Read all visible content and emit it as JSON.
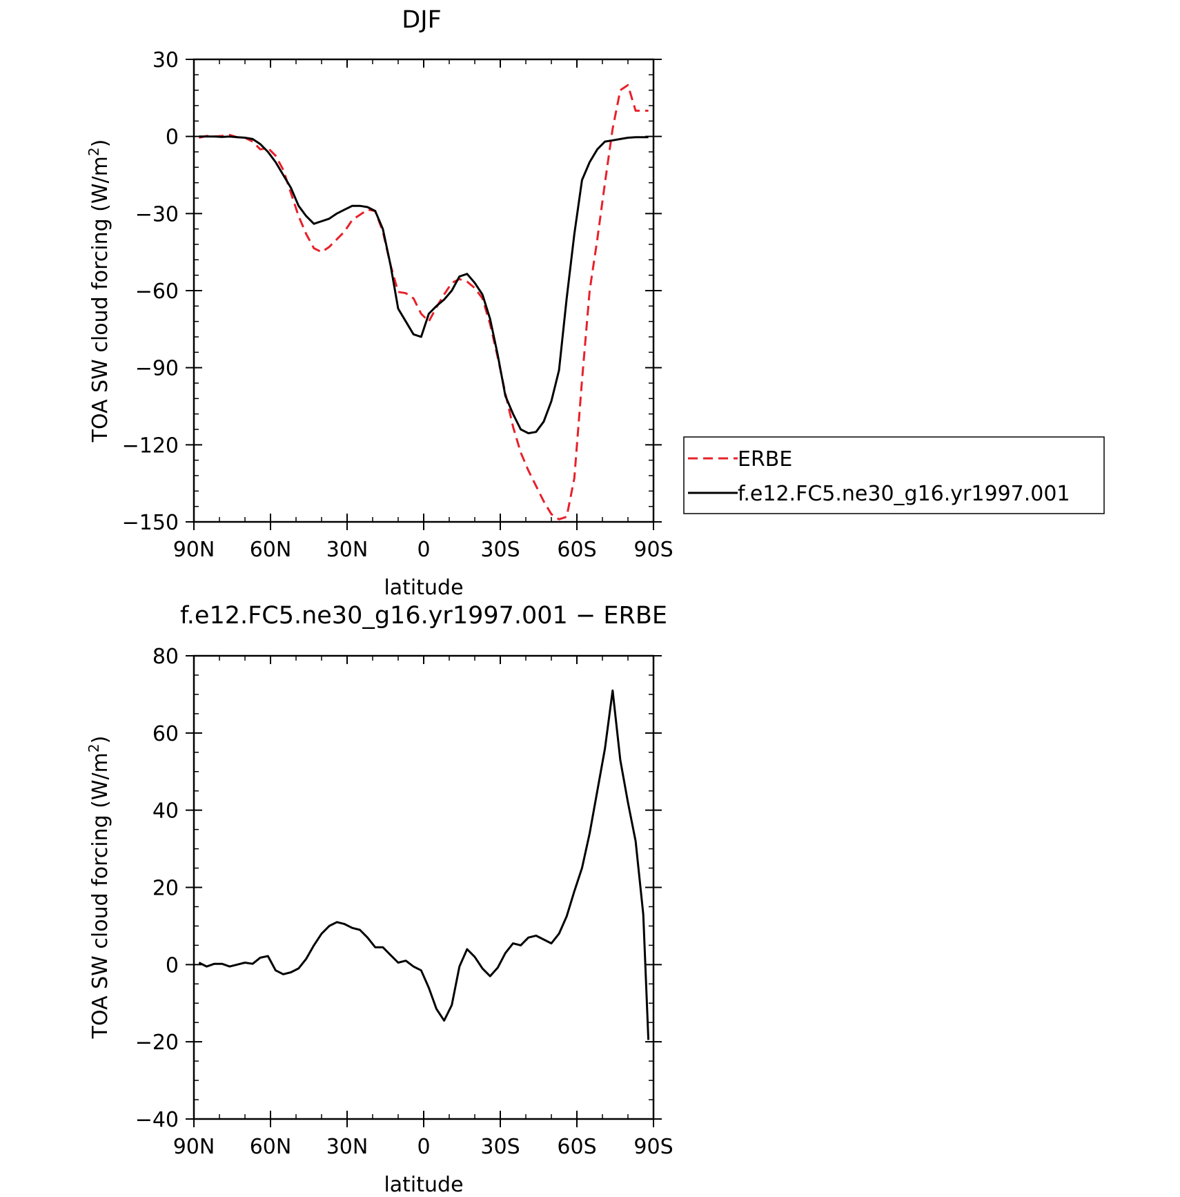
{
  "chart_data": [
    {
      "type": "line",
      "title": "DJF",
      "xlabel": "latitude",
      "ylabel": "TOA SW cloud forcing (W/m²)",
      "ylabel_base": "TOA SW cloud forcing (W/m",
      "ylabel_sup": "2",
      "ylabel_end": ")",
      "xlim": [
        90,
        -90
      ],
      "ylim": [
        -150,
        30
      ],
      "xticks": [
        90,
        60,
        30,
        0,
        -30,
        -60,
        -90
      ],
      "xtick_labels": [
        "90N",
        "60N",
        "30N",
        "0",
        "30S",
        "60S",
        "90S"
      ],
      "yticks": [
        30,
        0,
        -30,
        -60,
        -90,
        -120,
        -150
      ],
      "ytick_labels": [
        "30",
        "0",
        "−30",
        "−60",
        "−90",
        "−120",
        "−150"
      ],
      "grid": false,
      "legend": {
        "placement": "right-outside",
        "entries": [
          "ERBE",
          "f.e12.FC5.ne30_g16.yr1997.001"
        ]
      },
      "x": [
        88,
        85,
        82,
        79,
        76,
        73,
        70,
        67,
        64,
        61,
        58,
        55,
        52,
        49,
        46,
        43,
        40,
        37,
        34,
        31,
        28,
        25,
        22,
        19,
        16,
        13,
        10,
        7,
        4,
        1,
        -2,
        -5,
        -8,
        -11,
        -14,
        -17,
        -20,
        -23,
        -26,
        -29,
        -32,
        -35,
        -38,
        -41,
        -44,
        -47,
        -50,
        -53,
        -56,
        -59,
        -62,
        -65,
        -68,
        -71,
        -74,
        -77,
        -80,
        -83,
        -86,
        -88
      ],
      "series": [
        {
          "name": "ERBE",
          "color": "#e8202a",
          "dash": "dashed",
          "values": [
            -0.5,
            0.2,
            0.0,
            0.2,
            0.6,
            -0.3,
            -0.5,
            -2,
            -5,
            -4.5,
            -7.5,
            -13,
            -22,
            -31,
            -38,
            -43.5,
            -45,
            -43,
            -40,
            -37,
            -32.5,
            -30.5,
            -28.5,
            -29,
            -37,
            -50,
            -60.5,
            -61,
            -63,
            -69,
            -72,
            -66.5,
            -61.5,
            -57,
            -55.5,
            -56.5,
            -59,
            -63,
            -73,
            -86,
            -100,
            -113,
            -123,
            -130,
            -136,
            -142,
            -147,
            -149,
            -148,
            -133,
            -95,
            -60,
            -40,
            -18,
            3,
            18,
            20,
            10,
            10,
            10
          ]
        },
        {
          "name": "f.e12.FC5.ne30_g16.yr1997.001",
          "color": "#000000",
          "dash": "solid",
          "values": [
            0.0,
            0.0,
            0.0,
            -0.2,
            0.0,
            -0.3,
            -0.5,
            -1,
            -3,
            -6,
            -10,
            -15,
            -20,
            -27,
            -31,
            -34,
            -33,
            -32,
            -30,
            -28.5,
            -27,
            -27,
            -27.5,
            -29,
            -36,
            -50,
            -67,
            -72,
            -77,
            -78,
            -69,
            -66,
            -63.5,
            -60,
            -54.5,
            -53.5,
            -57,
            -61.5,
            -71,
            -85,
            -101,
            -108,
            -114,
            -115.5,
            -115,
            -111,
            -103,
            -91,
            -63,
            -38,
            -17,
            -10,
            -5,
            -2,
            -1.5,
            -1,
            -0.5,
            -0.3,
            -0.3,
            -0.3
          ]
        }
      ]
    },
    {
      "type": "line",
      "title": "f.e12.FC5.ne30_g16.yr1997.001 − ERBE",
      "xlabel": "latitude",
      "ylabel": "TOA SW cloud forcing (W/m²)",
      "ylabel_base": "TOA SW cloud forcing (W/m",
      "ylabel_sup": "2",
      "ylabel_end": ")",
      "xlim": [
        90,
        -90
      ],
      "ylim": [
        -40,
        80
      ],
      "xticks": [
        90,
        60,
        30,
        0,
        -30,
        -60,
        -90
      ],
      "xtick_labels": [
        "90N",
        "60N",
        "30N",
        "0",
        "30S",
        "60S",
        "90S"
      ],
      "yticks": [
        80,
        60,
        40,
        20,
        0,
        -20,
        -40
      ],
      "ytick_labels": [
        "80",
        "60",
        "40",
        "20",
        "0",
        "−20",
        "−40"
      ],
      "grid": false,
      "x": [
        88,
        85,
        82,
        79,
        76,
        73,
        70,
        67,
        64,
        61,
        58,
        55,
        52,
        49,
        46,
        43,
        40,
        37,
        34,
        31,
        28,
        25,
        22,
        19,
        16,
        13,
        10,
        7,
        4,
        1,
        -2,
        -5,
        -8,
        -11,
        -14,
        -17,
        -20,
        -23,
        -26,
        -29,
        -32,
        -35,
        -38,
        -41,
        -44,
        -47,
        -50,
        -53,
        -56,
        -59,
        -62,
        -65,
        -68,
        -71,
        -74,
        -77,
        -80,
        -83,
        -86,
        -88
      ],
      "series": [
        {
          "name": "",
          "color": "#000000",
          "dash": "solid",
          "values": [
            0.5,
            -0.5,
            0.2,
            0.2,
            -0.5,
            0.0,
            0.5,
            0.2,
            1.8,
            2.2,
            -1.5,
            -2.5,
            -2.0,
            -1.0,
            1.5,
            5.0,
            8.0,
            10.0,
            11.0,
            10.5,
            9.5,
            9.0,
            7.0,
            4.5,
            4.5,
            2.5,
            0.5,
            1.0,
            -0.5,
            -1.5,
            -6,
            -11.5,
            -14.5,
            -10.5,
            -0.5,
            4.0,
            2.0,
            -1.0,
            -3.0,
            -0.8,
            3.0,
            5.5,
            5.0,
            7.0,
            7.5,
            6.5,
            5.5,
            8.0,
            12.5,
            19.0,
            25.0,
            34.0,
            45.0,
            56.0,
            71.0,
            53.0,
            42.0,
            32.0,
            13.0,
            -19.5
          ]
        }
      ]
    }
  ]
}
